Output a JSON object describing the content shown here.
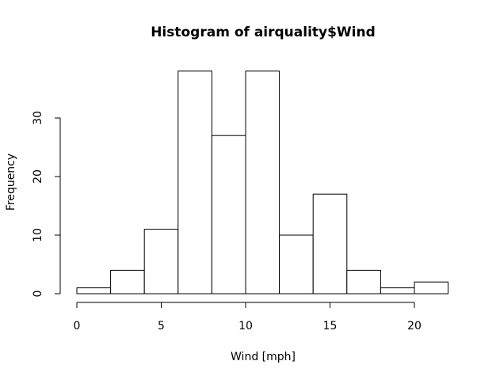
{
  "chart_data": {
    "type": "bar",
    "title": "Histogram of airquality$Wind",
    "xlabel": "Wind [mph]",
    "ylabel": "Frequency",
    "bins": [
      {
        "x0": 0,
        "x1": 2,
        "count": 1
      },
      {
        "x0": 2,
        "x1": 4,
        "count": 4
      },
      {
        "x0": 4,
        "x1": 6,
        "count": 11
      },
      {
        "x0": 6,
        "x1": 8,
        "count": 38
      },
      {
        "x0": 8,
        "x1": 10,
        "count": 27
      },
      {
        "x0": 10,
        "x1": 12,
        "count": 38
      },
      {
        "x0": 12,
        "x1": 14,
        "count": 10
      },
      {
        "x0": 14,
        "x1": 16,
        "count": 17
      },
      {
        "x0": 16,
        "x1": 18,
        "count": 4
      },
      {
        "x0": 18,
        "x1": 20,
        "count": 1
      },
      {
        "x0": 20,
        "x1": 22,
        "count": 2
      }
    ],
    "xticks": [
      0,
      5,
      10,
      15,
      20
    ],
    "yticks": [
      0,
      10,
      20,
      30
    ],
    "xlim": [
      0,
      20
    ],
    "ylim": [
      0,
      38
    ],
    "grid": false,
    "bar_fill": "#ffffff",
    "bar_stroke": "#000000"
  }
}
